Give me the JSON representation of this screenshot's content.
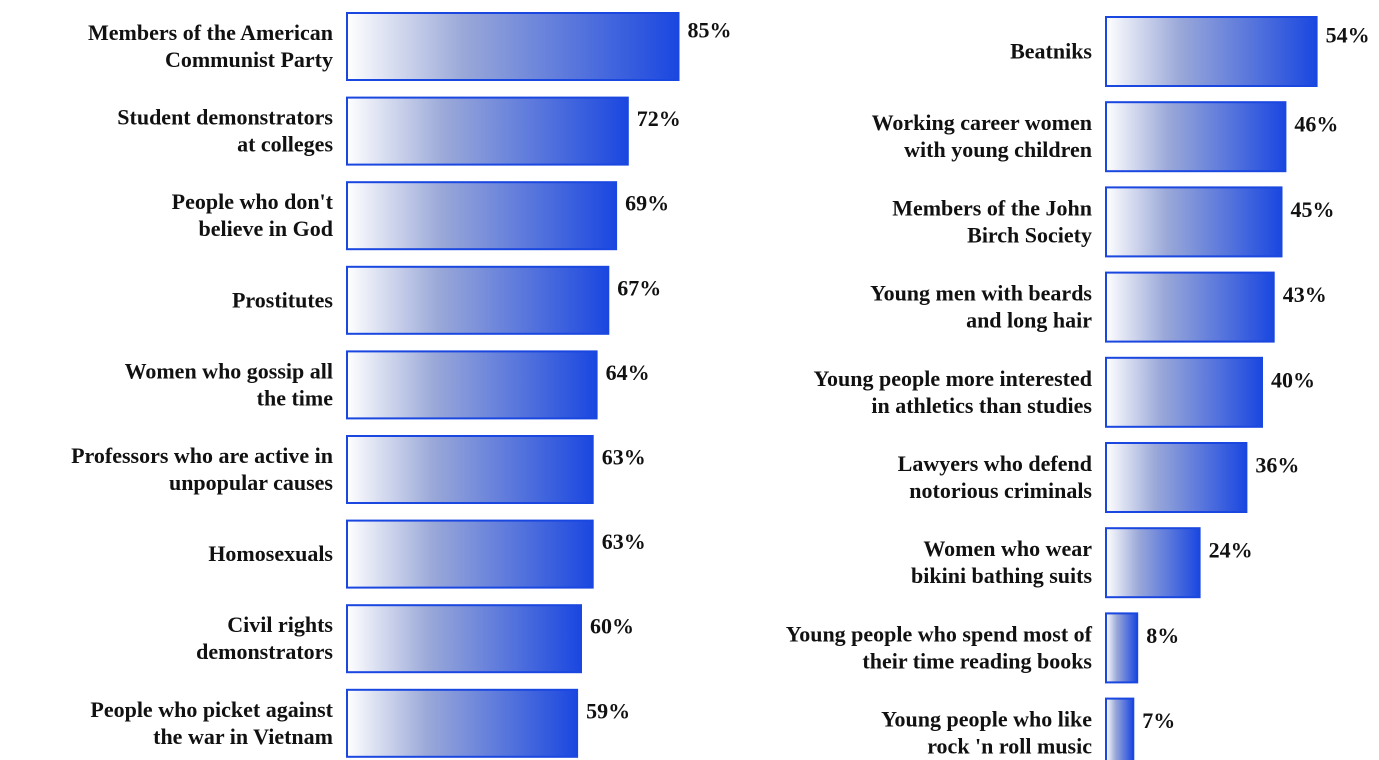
{
  "chart_data": [
    {
      "type": "bar",
      "orientation": "horizontal",
      "title": "",
      "xlabel": "",
      "ylabel": "",
      "xlim": [
        0,
        100
      ],
      "grid": false,
      "unit": "%",
      "categories": [
        [
          "Members of the American",
          "Communist Party"
        ],
        [
          "Student demonstrators",
          "at colleges"
        ],
        [
          "People who don't",
          "believe in God"
        ],
        [
          "Prostitutes"
        ],
        [
          "Women who gossip all",
          "the time"
        ],
        [
          "Professors who are active in",
          "unpopular causes"
        ],
        [
          "Homosexuals"
        ],
        [
          "Civil rights",
          "demonstrators"
        ],
        [
          "People who picket against",
          "the war in Vietnam"
        ]
      ],
      "values": [
        85,
        72,
        69,
        67,
        64,
        63,
        63,
        60,
        59
      ],
      "value_labels": [
        "85%",
        "72%",
        "69%",
        "67%",
        "64%",
        "63%",
        "63%",
        "60%",
        "59%"
      ]
    },
    {
      "type": "bar",
      "orientation": "horizontal",
      "title": "",
      "xlabel": "",
      "ylabel": "",
      "xlim": [
        0,
        100
      ],
      "grid": false,
      "unit": "%",
      "categories": [
        [
          "Beatniks"
        ],
        [
          "Working career women",
          "with young children"
        ],
        [
          "Members of the John",
          "Birch Society"
        ],
        [
          "Young men with beards",
          "and long hair"
        ],
        [
          "Young people more interested",
          "in athletics than studies"
        ],
        [
          "Lawyers who defend",
          "notorious criminals"
        ],
        [
          "Women who wear",
          "bikini bathing suits"
        ],
        [
          "Young people who spend most of",
          "their time reading books"
        ],
        [
          "Young people who like",
          "rock 'n roll music"
        ]
      ],
      "values": [
        54,
        46,
        45,
        43,
        40,
        36,
        24,
        8,
        7
      ],
      "value_labels": [
        "54%",
        "46%",
        "45%",
        "43%",
        "40%",
        "36%",
        "24%",
        "8%",
        "7%"
      ]
    }
  ],
  "colors": {
    "bar_start": "#ffffff",
    "bar_mid": "#9aa8d8",
    "bar_end": "#1a47e0",
    "bar_stroke": "#1a47e0",
    "text": "#111111",
    "background": "#ffffff"
  }
}
